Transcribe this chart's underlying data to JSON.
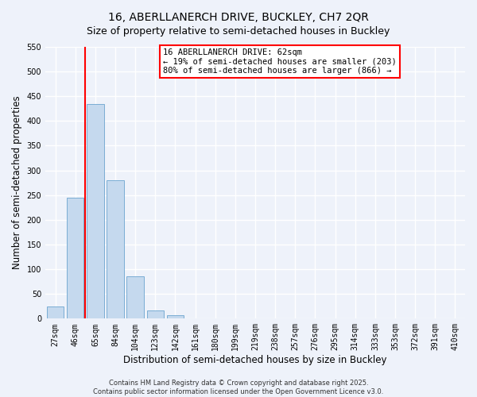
{
  "title": "16, ABERLLANERCH DRIVE, BUCKLEY, CH7 2QR",
  "subtitle": "Size of property relative to semi-detached houses in Buckley",
  "xlabel": "Distribution of semi-detached houses by size in Buckley",
  "ylabel": "Number of semi-detached properties",
  "bar_labels": [
    "27sqm",
    "46sqm",
    "65sqm",
    "84sqm",
    "104sqm",
    "123sqm",
    "142sqm",
    "161sqm",
    "180sqm",
    "199sqm",
    "219sqm",
    "238sqm",
    "257sqm",
    "276sqm",
    "295sqm",
    "314sqm",
    "333sqm",
    "353sqm",
    "372sqm",
    "391sqm",
    "410sqm"
  ],
  "bar_values": [
    24,
    245,
    435,
    280,
    85,
    16,
    7,
    1,
    0,
    0,
    0,
    0,
    0,
    0,
    0,
    0,
    0,
    0,
    0,
    0,
    0
  ],
  "bar_color": "#c5d9ee",
  "bar_edge_color": "#7aadd4",
  "vline_x": 1.5,
  "vline_color": "red",
  "ylim": [
    0,
    550
  ],
  "yticks": [
    0,
    50,
    100,
    150,
    200,
    250,
    300,
    350,
    400,
    450,
    500,
    550
  ],
  "annotation_title": "16 ABERLLANERCH DRIVE: 62sqm",
  "annotation_line1": "← 19% of semi-detached houses are smaller (203)",
  "annotation_line2": "80% of semi-detached houses are larger (866) →",
  "annotation_box_color": "white",
  "annotation_box_edge": "red",
  "footer_line1": "Contains HM Land Registry data © Crown copyright and database right 2025.",
  "footer_line2": "Contains public sector information licensed under the Open Government Licence v3.0.",
  "bg_color": "#eef2fa",
  "plot_bg_color": "#eef2fa",
  "grid_color": "white",
  "title_fontsize": 10,
  "subtitle_fontsize": 9,
  "tick_fontsize": 7,
  "label_fontsize": 8.5,
  "footer_fontsize": 6
}
